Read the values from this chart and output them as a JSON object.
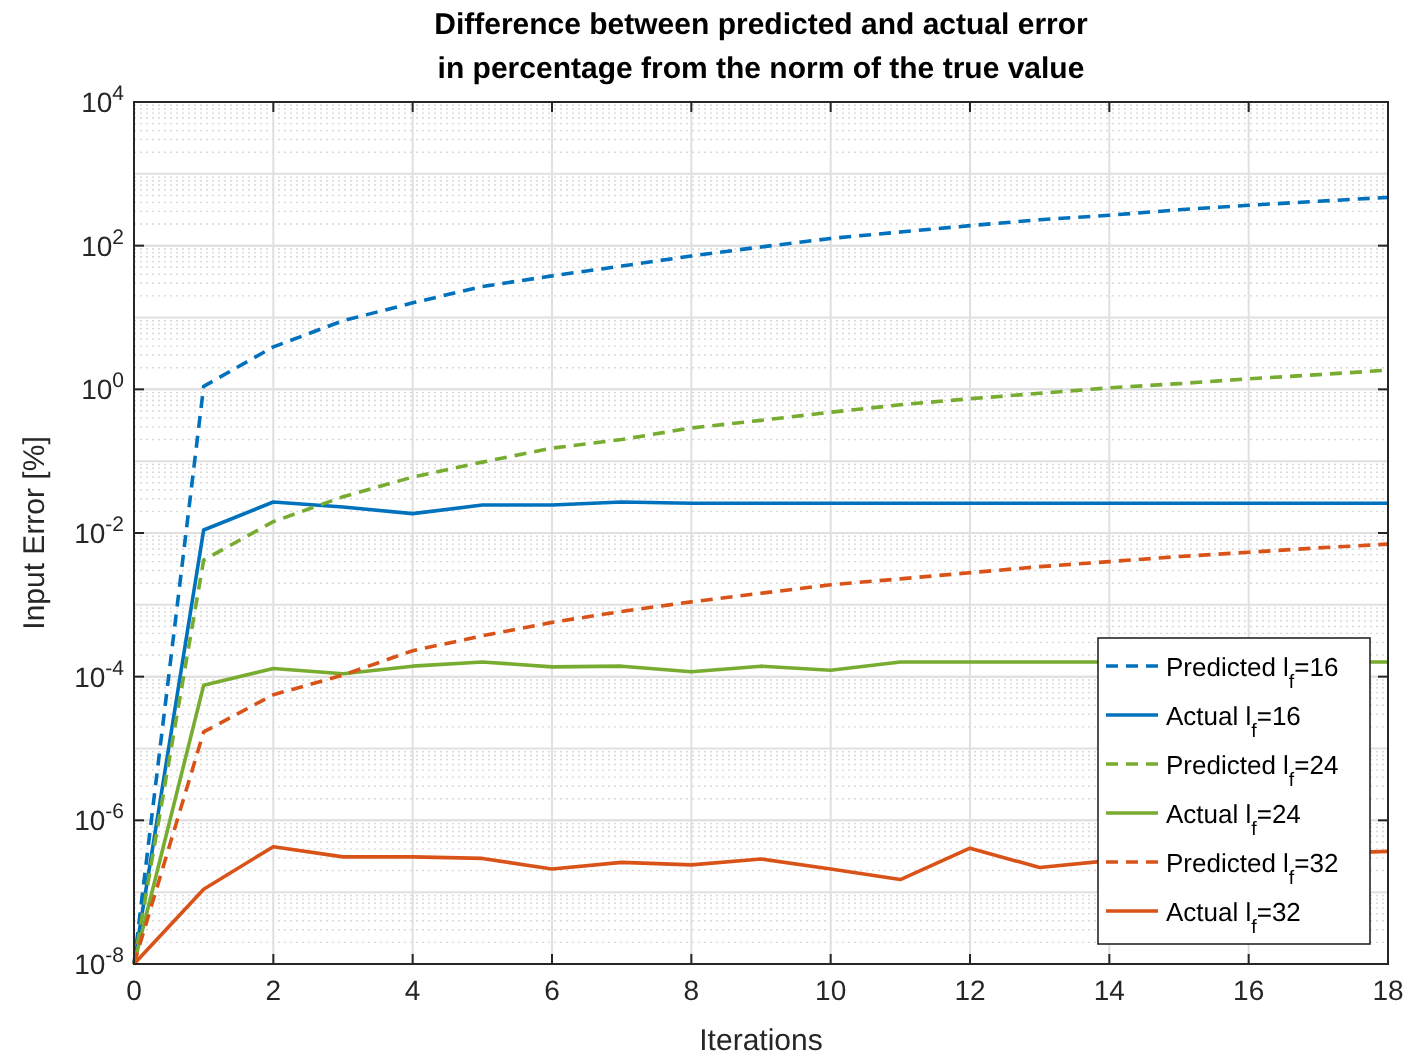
{
  "chart_data": {
    "type": "line",
    "title": "Difference between predicted and actual error\nin percentage from the norm of the true value",
    "xlabel": "Iterations",
    "ylabel": "Input Error [%]",
    "x": [
      0,
      1,
      2,
      3,
      4,
      5,
      6,
      7,
      8,
      9,
      10,
      11,
      12,
      13,
      14,
      15,
      16,
      17,
      18
    ],
    "log": "y",
    "grid": true,
    "legend": "bottom right",
    "xlim": [
      0,
      18
    ],
    "xticks": [
      0,
      2,
      4,
      6,
      8,
      10,
      12,
      14,
      16,
      18
    ],
    "ylim": [
      1e-08,
      10000
    ],
    "yticks": [
      {
        "value": 1e-08,
        "label": "10$^{-8}$"
      },
      {
        "value": 1e-06,
        "label": "10$^{-6}$"
      },
      {
        "value": 0.0001,
        "label": "10$^{-4}$"
      },
      {
        "value": 0.01,
        "label": "10$^{-2}$"
      },
      {
        "value": 1,
        "label": "10$^{0}$"
      },
      {
        "value": 100,
        "label": "10$^{2}$"
      },
      {
        "value": 10000,
        "label": "10$^{4}$"
      }
    ],
    "series": [
      {
        "name": "Predicted l$_{f}$=16",
        "color": "#0072bd",
        "line_style": "dashed",
        "values": [
          1e-08,
          1.1,
          3.9,
          9,
          16,
          27,
          38,
          52,
          72,
          96,
          126,
          155,
          190,
          230,
          265,
          316,
          365,
          415,
          470
        ]
      },
      {
        "name": "Actual l$_{f}$=16",
        "color": "#0072bd",
        "line_style": "solid",
        "values": [
          1e-08,
          0.011,
          0.027,
          0.023,
          0.0186,
          0.0245,
          0.0245,
          0.027,
          0.026,
          0.026,
          0.026,
          0.026,
          0.026,
          0.026,
          0.026,
          0.026,
          0.026,
          0.026,
          0.026
        ]
      },
      {
        "name": "Predicted l$_{f}$=24",
        "color": "#77ac30",
        "line_style": "dashed",
        "values": [
          1e-08,
          0.0042,
          0.0144,
          0.032,
          0.06,
          0.097,
          0.152,
          0.2,
          0.29,
          0.37,
          0.48,
          0.61,
          0.74,
          0.88,
          1.05,
          1.2,
          1.4,
          1.6,
          1.85
        ]
      },
      {
        "name": "Actual l$_{f}$=24",
        "color": "#77ac30",
        "line_style": "solid",
        "values": [
          1e-08,
          7.6e-05,
          0.00013,
          0.00011,
          0.00014,
          0.00016,
          0.000137,
          0.00014,
          0.000117,
          0.00014,
          0.000123,
          0.00016,
          0.00016,
          0.00016,
          null,
          null,
          null,
          null,
          0.00016
        ]
      },
      {
        "name": "Predicted l$_{f}$=32",
        "color": "#d95319",
        "line_style": "dashed",
        "values": [
          1e-08,
          1.7e-05,
          5.6e-05,
          0.000105,
          0.00023,
          0.00037,
          0.00057,
          0.00081,
          0.0011,
          0.00145,
          0.0019,
          0.0023,
          0.0028,
          0.0034,
          0.004,
          0.0047,
          0.0054,
          0.0062,
          0.007
        ]
      },
      {
        "name": "Actual l$_{f}$=32",
        "color": "#d95319",
        "line_style": "solid",
        "values": [
          1e-08,
          1.1e-07,
          4.3e-07,
          3.1e-07,
          3.1e-07,
          2.95e-07,
          2.1e-07,
          2.6e-07,
          2.4e-07,
          2.9e-07,
          2.1e-07,
          1.5e-07,
          4.1e-07,
          2.2e-07,
          2.75e-07,
          null,
          null,
          null,
          3.7e-07
        ]
      }
    ]
  }
}
